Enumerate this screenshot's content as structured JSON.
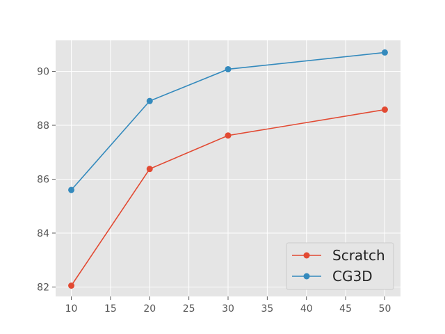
{
  "chart_data": {
    "type": "line",
    "title": "",
    "xlabel": "",
    "ylabel": "",
    "x": [
      10,
      20,
      30,
      50
    ],
    "xlim": [
      8.0,
      52.0
    ],
    "ylim": [
      81.65,
      91.15
    ],
    "xticks": [
      10,
      15,
      20,
      25,
      30,
      35,
      40,
      45,
      50
    ],
    "yticks": [
      82,
      84,
      86,
      88,
      90
    ],
    "grid": true,
    "legend_position": "bottom-right",
    "series": [
      {
        "name": "Scratch",
        "color": "#E24A33",
        "values": [
          82.05,
          86.38,
          87.62,
          88.58
        ]
      },
      {
        "name": "CG3D",
        "color": "#348ABD",
        "values": [
          85.6,
          88.9,
          90.08,
          90.7
        ]
      }
    ]
  }
}
